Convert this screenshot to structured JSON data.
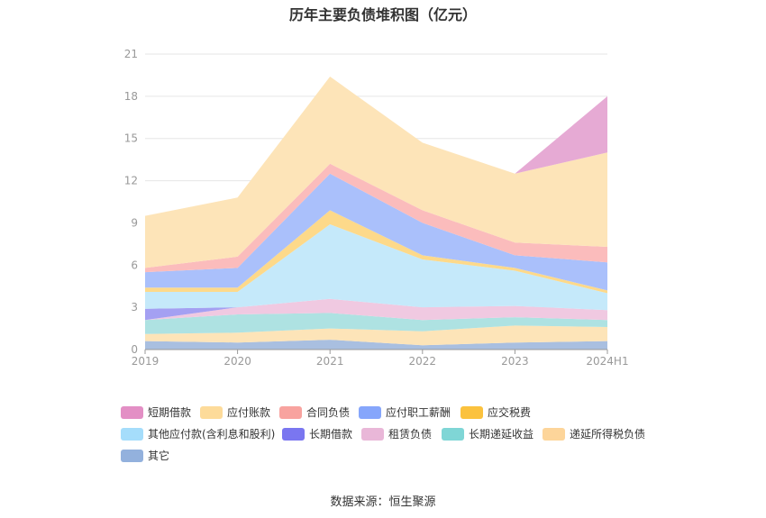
{
  "chart_data": {
    "type": "area",
    "stacked": true,
    "title": "历年主要负债堆积图（亿元）",
    "source": "数据来源：恒生聚源",
    "categories": [
      "2019",
      "2020",
      "2021",
      "2022",
      "2023",
      "2024H1"
    ],
    "ylim": [
      0,
      21
    ],
    "yticks": [
      "0",
      "3",
      "6",
      "9",
      "12",
      "15",
      "18",
      "21"
    ],
    "grid": true,
    "legend_position": "bottom",
    "series": [
      {
        "name": "其它",
        "color": "#a9bfe0",
        "values": [
          0.6,
          0.5,
          0.7,
          0.3,
          0.5,
          0.6
        ]
      },
      {
        "name": "递延所得税负债",
        "color": "#fde4b8",
        "values": [
          0.5,
          0.7,
          0.8,
          1.0,
          1.2,
          1.0
        ]
      },
      {
        "name": "长期递延收益",
        "color": "#aee2e2",
        "values": [
          1.0,
          1.3,
          1.1,
          0.8,
          0.6,
          0.5
        ]
      },
      {
        "name": "租赁负债",
        "color": "#f0c9e1",
        "values": [
          0.0,
          0.5,
          1.0,
          0.9,
          0.8,
          0.7
        ]
      },
      {
        "name": "长期借款",
        "color": "#a4a0f2",
        "values": [
          0.8,
          0.0,
          0.0,
          0.0,
          0.0,
          0.0
        ]
      },
      {
        "name": "其他应付款(含利息和股利)",
        "color": "#c5e9fa",
        "values": [
          1.2,
          1.1,
          5.3,
          3.4,
          2.5,
          1.2
        ]
      },
      {
        "name": "应交税费",
        "color": "#fdd98a",
        "values": [
          0.3,
          0.3,
          1.0,
          0.3,
          0.2,
          0.2
        ]
      },
      {
        "name": "应付职工薪酬",
        "color": "#aac0fb",
        "values": [
          1.1,
          1.4,
          2.6,
          2.3,
          0.9,
          2.0
        ]
      },
      {
        "name": "合同负债",
        "color": "#fbbcbc",
        "values": [
          0.3,
          0.8,
          0.7,
          0.9,
          0.9,
          1.1
        ]
      },
      {
        "name": "应付账款",
        "color": "#fde4b8",
        "values": [
          3.7,
          4.2,
          6.2,
          4.8,
          4.9,
          6.7
        ]
      },
      {
        "name": "短期借款",
        "color": "#e6aad4",
        "values": [
          0.0,
          0.0,
          0.0,
          0.0,
          0.0,
          4.0
        ]
      }
    ],
    "legend": [
      {
        "name": "短期借款",
        "color": "#e38fc5"
      },
      {
        "name": "应付账款",
        "color": "#fddb9a"
      },
      {
        "name": "合同负债",
        "color": "#f8a39f"
      },
      {
        "name": "应付职工薪酬",
        "color": "#86a6fb"
      },
      {
        "name": "应交税费",
        "color": "#fbc23e"
      },
      {
        "name": "其他应付款(含利息和股利)",
        "color": "#a5ddfb"
      },
      {
        "name": "长期借款",
        "color": "#7a76f0"
      },
      {
        "name": "租赁负债",
        "color": "#e9b7d8"
      },
      {
        "name": "长期递延收益",
        "color": "#7fd6d6"
      },
      {
        "name": "递延所得税负债",
        "color": "#fdd59a"
      },
      {
        "name": "其它",
        "color": "#93b1dd"
      }
    ]
  }
}
